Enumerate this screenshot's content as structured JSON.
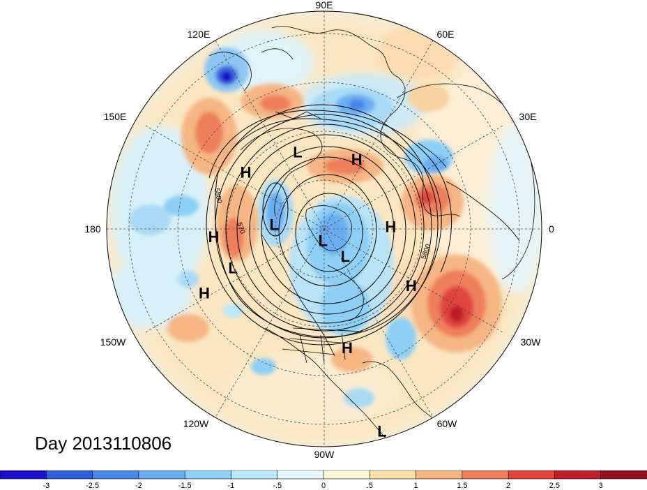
{
  "title": "Day 2013110806",
  "longitude_labels": {
    "lon_90e": "90E",
    "lon_60e": "60E",
    "lon_30e": "30E",
    "lon_0": "0",
    "lon_30w": "30W",
    "lon_60w": "60W",
    "lon_90w": "90W",
    "lon_120w": "120W",
    "lon_150w": "150W",
    "lon_180": "180",
    "lon_150e": "150E",
    "lon_120e": "120E"
  },
  "contour_labels": [
    "5800",
    "570",
    "5800"
  ],
  "pressure_systems": [
    {
      "kind": "L",
      "lon_deg": 109,
      "lat_deg": 49
    },
    {
      "kind": "H",
      "lon_deg": 65,
      "lat_deg": 51
    },
    {
      "kind": "H",
      "lon_deg": 144,
      "lat_deg": 42
    },
    {
      "kind": "L",
      "lon_deg": 175,
      "lat_deg": 64
    },
    {
      "kind": "H",
      "lon_deg": 2,
      "lat_deg": 56
    },
    {
      "kind": "L",
      "lon_deg": -96,
      "lat_deg": 84
    },
    {
      "kind": "H",
      "lon_deg": -176,
      "lat_deg": 36
    },
    {
      "kind": "L",
      "lon_deg": -52,
      "lat_deg": 72
    },
    {
      "kind": "H",
      "lon_deg": -33,
      "lat_deg": 39
    },
    {
      "kind": "L",
      "lon_deg": -157,
      "lat_deg": 41
    },
    {
      "kind": "H",
      "lon_deg": -152,
      "lat_deg": 26
    },
    {
      "kind": "H",
      "lon_deg": -79,
      "lat_deg": 32
    },
    {
      "kind": "L",
      "lon_deg": -74,
      "lat_deg": 2
    }
  ],
  "colorbar": {
    "tick_labels": [
      "-3",
      "-2.5",
      "-2",
      "-1.5",
      "-1",
      "-.5",
      "0",
      ".5",
      "1",
      "1.5",
      "2",
      "2.5",
      "3"
    ],
    "colors": [
      "#1a10c8",
      "#2e5fd8",
      "#4a86e8",
      "#6aaef0",
      "#8dcff5",
      "#b9e8fa",
      "#e3f6fb",
      "#fbf6d6",
      "#f8e1a8",
      "#f5b684",
      "#ee7f5c",
      "#e0443c",
      "#bd1f2a",
      "#8f0f1d"
    ]
  }
}
